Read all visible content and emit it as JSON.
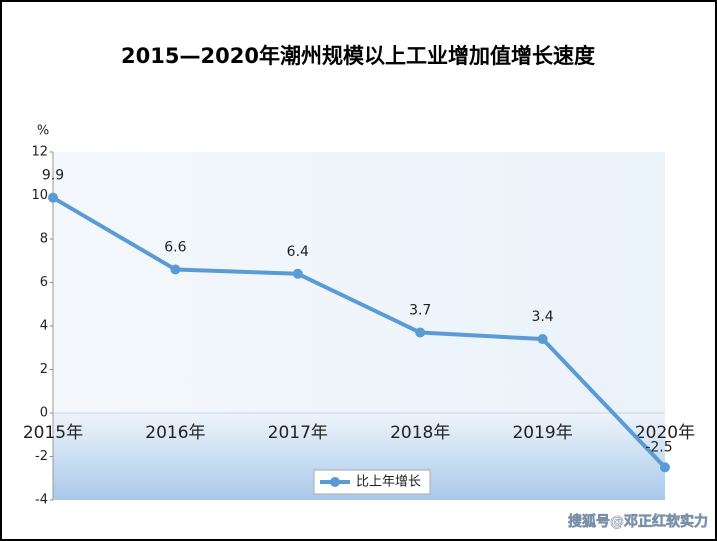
{
  "chart_data": {
    "type": "line",
    "title": "2015—2020年潮州规模以上工业增加值增长速度",
    "y_label": "%",
    "categories": [
      "2015年",
      "2016年",
      "2017年",
      "2018年",
      "2019年",
      "2020年"
    ],
    "series": [
      {
        "name": "比上年增长",
        "color": "#5b9bd5",
        "values": [
          9.9,
          6.6,
          6.4,
          3.7,
          3.4,
          -2.5
        ]
      }
    ],
    "ylim": [
      -4,
      12
    ],
    "yticks": [
      -4,
      -2,
      0,
      2,
      4,
      6,
      8,
      10,
      12
    ],
    "legend": "bottom",
    "watermark": "搜狐号@邓正红软实力"
  }
}
